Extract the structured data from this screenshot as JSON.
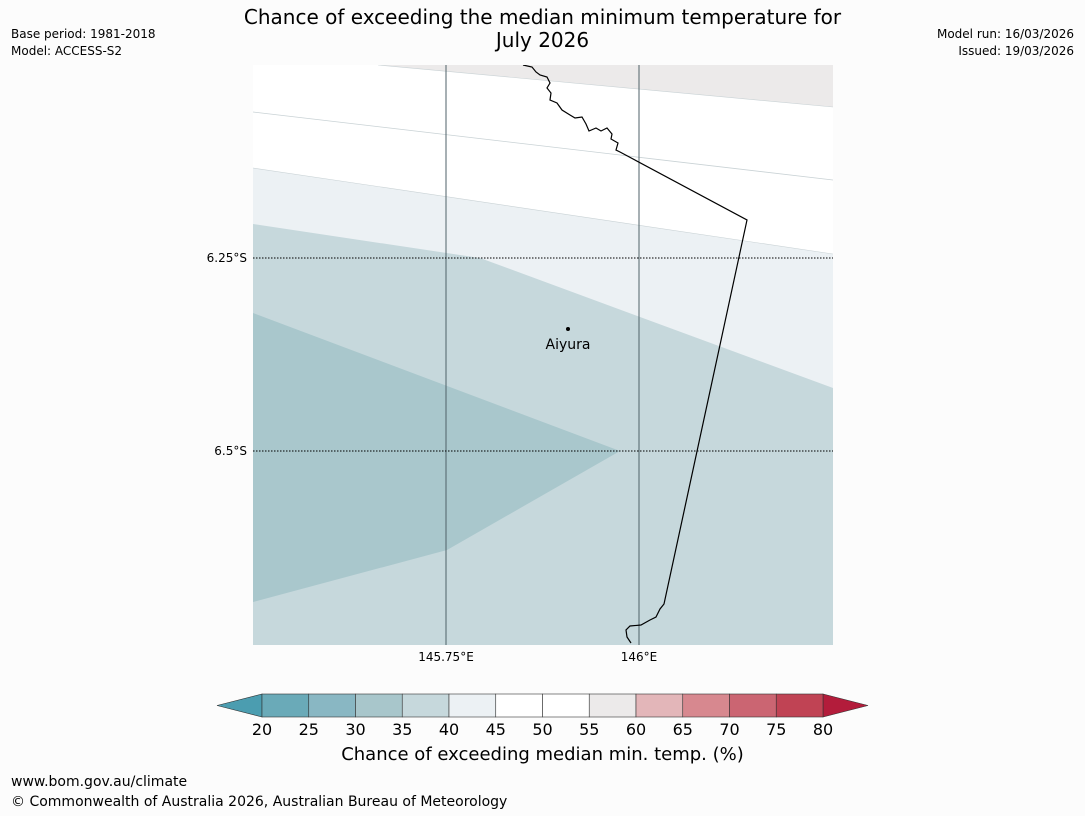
{
  "header": {
    "title_line1": "Chance of exceeding the median minimum temperature for",
    "title_line2": "July 2026",
    "base_period": "Base period: 1981-2018",
    "model": "Model: ACCESS-S2",
    "model_run": "Model run: 16/03/2026",
    "issued": "Issued: 19/03/2026"
  },
  "map": {
    "lat_labels": [
      "6.25°S",
      "6.5°S"
    ],
    "lon_labels": [
      "145.75°E",
      "146°E"
    ],
    "place": "Aiyura",
    "colors": {
      "band_45_50": "#ecf1f4",
      "band_35_40": "#c6d8dc",
      "band_30_35": "#a9c7cc",
      "band_55_60": "#eceaea",
      "coast": "#000000",
      "grid": "#4f6268"
    }
  },
  "colorbar": {
    "ticks": [
      "20",
      "25",
      "30",
      "35",
      "40",
      "45",
      "50",
      "55",
      "60",
      "65",
      "70",
      "75",
      "80"
    ],
    "colors": [
      "#6aaab8",
      "#89b7c3",
      "#a8c6cb",
      "#c6d8dc",
      "#ecf1f4",
      "#ffffff",
      "#ffffff",
      "#eceaea",
      "#e3b6b9",
      "#d7888f",
      "#cb6572",
      "#c04354"
    ],
    "under_color": "#4b9db0",
    "over_color": "#b31c3b",
    "label": "Chance of exceeding median min. temp. (%)"
  },
  "footer": {
    "url": "www.bom.gov.au/climate",
    "copyright": "© Commonwealth of Australia 2026, Australian Bureau of Meteorology"
  }
}
